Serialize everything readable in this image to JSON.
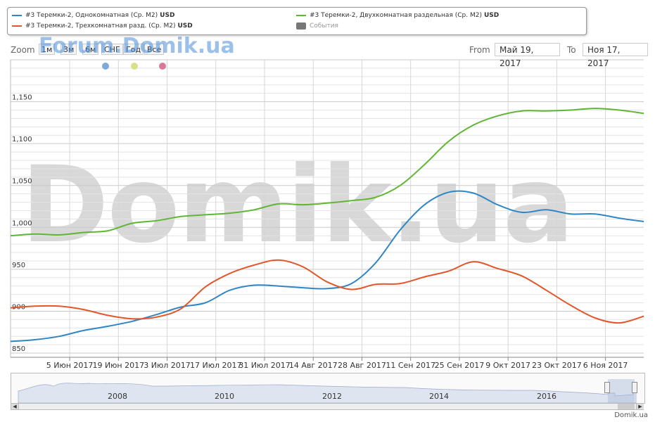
{
  "legend": {
    "items": [
      {
        "label": "#3 Теремки-2, Однокомнатная (Ср. М2)",
        "unit": "USD",
        "color": "#2f86c5",
        "kind": "line"
      },
      {
        "label": "#3 Теремки-2, Двухкомнатная раздельная (Ср. М2)",
        "unit": "USD",
        "color": "#5fb632",
        "kind": "line"
      },
      {
        "label": "#3 Теремки-2, Трехкомнатная разд. (Ср. М2)",
        "unit": "USD",
        "color": "#e2562a",
        "kind": "line"
      },
      {
        "label": "События",
        "unit": "",
        "color": "#777777",
        "kind": "box"
      }
    ]
  },
  "toolbar": {
    "zoom_label": "Zoom",
    "zoom_buttons": [
      "1м",
      "3м",
      "6м",
      "СНГ",
      "Год",
      "Все"
    ],
    "from_label": "From",
    "from_value": "Май 19, 2017",
    "to_label": "To",
    "to_value": "Ноя 17, 2017",
    "watermark_small": "Forum.Domik.ua"
  },
  "watermark_big": "Domik.ua",
  "footer": "Domik.ua",
  "navigator": {
    "year_labels": [
      "2008",
      "2010",
      "2012",
      "2014",
      "2016"
    ]
  },
  "chart_data": {
    "type": "line",
    "y_ticks": [
      "850",
      "900",
      "950",
      "1,000",
      "1,050",
      "1,100",
      "1,150"
    ],
    "ylim": [
      845,
      1200
    ],
    "x_tick_labels": [
      "5 Июн 2017",
      "19 Июн 2017",
      "3 Июл 2017",
      "17 Июл 2017",
      "31 Июл 2017",
      "14 Авг 2017",
      "28 Авг 2017",
      "11 Сен 2017",
      "25 Сен 2017",
      "9 Окт 2017",
      "23 Окт 2017",
      "6 Ноя 2017"
    ],
    "x_dates": [
      "2017-05-19",
      "2017-05-26",
      "2017-06-02",
      "2017-06-09",
      "2017-06-16",
      "2017-06-23",
      "2017-06-30",
      "2017-07-07",
      "2017-07-14",
      "2017-07-21",
      "2017-07-28",
      "2017-08-04",
      "2017-08-11",
      "2017-08-18",
      "2017-08-25",
      "2017-09-01",
      "2017-09-08",
      "2017-09-15",
      "2017-09-22",
      "2017-09-29",
      "2017-10-06",
      "2017-10-13",
      "2017-10-20",
      "2017-10-27",
      "2017-11-03",
      "2017-11-10",
      "2017-11-17"
    ],
    "series": [
      {
        "name": "#3 Теремки-2, Однокомнатная (Ср. М2)",
        "color": "#2f86c5",
        "values": [
          864,
          866,
          870,
          877,
          882,
          888,
          896,
          905,
          910,
          925,
          931,
          930,
          928,
          927,
          933,
          958,
          997,
          1027,
          1042,
          1041,
          1027,
          1018,
          1021,
          1016,
          1016,
          1011,
          1007
        ]
      },
      {
        "name": "#3 Теремки-2, Двухкомнатная раздельная (Ср. М2)",
        "color": "#5fb632",
        "values": [
          990,
          992,
          991,
          994,
          996,
          1005,
          1008,
          1013,
          1015,
          1017,
          1021,
          1028,
          1027,
          1029,
          1032,
          1036,
          1050,
          1075,
          1103,
          1122,
          1133,
          1139,
          1139,
          1140,
          1142,
          1140,
          1136
        ]
      },
      {
        "name": "#3 Теремки-2, Трехкомнатная разд. (Ср. М2)",
        "color": "#e2562a",
        "values": [
          904,
          906,
          906,
          902,
          895,
          891,
          893,
          903,
          929,
          945,
          955,
          961,
          953,
          935,
          926,
          932,
          933,
          941,
          948,
          959,
          951,
          942,
          925,
          907,
          892,
          886,
          894
        ]
      }
    ]
  }
}
